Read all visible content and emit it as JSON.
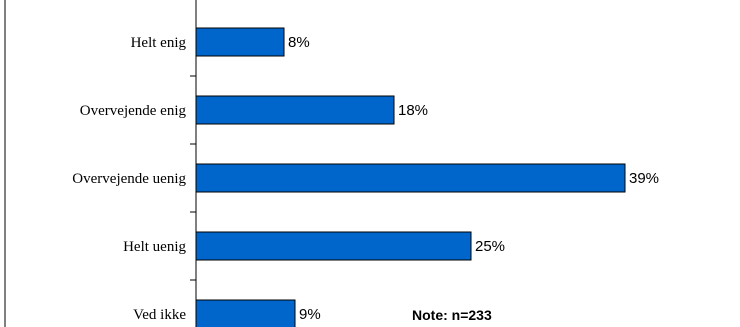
{
  "chart_data": {
    "type": "bar",
    "orientation": "horizontal",
    "categories": [
      "Helt enig",
      "Overvejende enig",
      "Overvejende uenig",
      "Helt uenig",
      "Ved ikke"
    ],
    "values": [
      8,
      18,
      39,
      25,
      9
    ],
    "value_suffix": "%",
    "data_labels": [
      "8%",
      "18%",
      "39%",
      "25%",
      "9%"
    ],
    "note": "Note: n=233",
    "xlim": [
      0,
      45
    ],
    "bar_color": "#0066cc",
    "grid": false,
    "legend": "none",
    "title": "",
    "xlabel": "",
    "ylabel": ""
  }
}
